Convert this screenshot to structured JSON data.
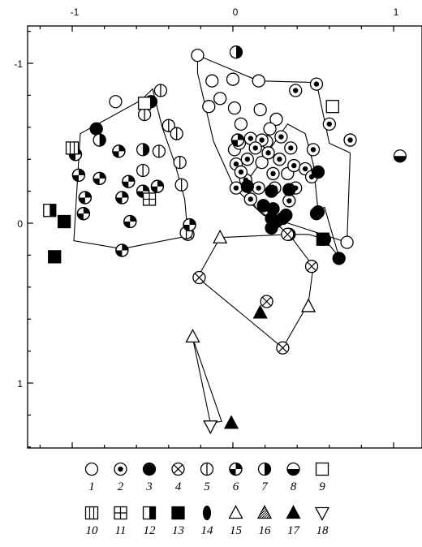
{
  "chart_data": {
    "type": "scatter",
    "title": "",
    "xlabel": "",
    "ylabel": "",
    "xlim": [
      -1.3,
      1.2
    ],
    "ylim": [
      1.42,
      -1.21
    ],
    "y_inverted": true,
    "x_ticks": [
      -1,
      0,
      1
    ],
    "x_tick_labels": [
      "-1",
      "0",
      "1"
    ],
    "y_ticks": [
      -1,
      0,
      1
    ],
    "y_tick_labels": [
      "-1",
      "0",
      "1"
    ],
    "x_axis_position": "top",
    "grid": false,
    "legend": {
      "position": "bottom",
      "entries": [
        {
          "label": "1",
          "symbol": "circle-open"
        },
        {
          "label": "2",
          "symbol": "circle-dot"
        },
        {
          "label": "3",
          "symbol": "circle-filled"
        },
        {
          "label": "4",
          "symbol": "circle-x"
        },
        {
          "label": "5",
          "symbol": "circle-vertical-bar"
        },
        {
          "label": "6",
          "symbol": "circle-quartered"
        },
        {
          "label": "7",
          "symbol": "circle-half-right"
        },
        {
          "label": "8",
          "symbol": "circle-half-bottom"
        },
        {
          "label": "9",
          "symbol": "square-open"
        },
        {
          "label": "10",
          "symbol": "square-bars"
        },
        {
          "label": "11",
          "symbol": "square-grid"
        },
        {
          "label": "12",
          "symbol": "square-half"
        },
        {
          "label": "13",
          "symbol": "square-filled"
        },
        {
          "label": "14",
          "symbol": "ellipse-filled"
        },
        {
          "label": "15",
          "symbol": "triangle-open"
        },
        {
          "label": "16",
          "symbol": "triangle-hatched"
        },
        {
          "label": "17",
          "symbol": "triangle-filled"
        },
        {
          "label": "18",
          "symbol": "triangle-down-open"
        }
      ]
    },
    "groups": [
      {
        "hull": [
          [
            -0.5,
            -0.84
          ],
          [
            -0.44,
            -0.6
          ],
          [
            -0.36,
            -0.37
          ],
          [
            -0.3,
            -0.15
          ],
          [
            -0.28,
            0.08
          ],
          [
            -0.69,
            0.16
          ],
          [
            -0.99,
            0.11
          ],
          [
            -0.95,
            -0.56
          ],
          [
            -0.57,
            -0.77
          ]
        ]
      },
      {
        "hull": [
          [
            -0.22,
            -1.05
          ],
          [
            0.16,
            -0.89
          ],
          [
            0.52,
            -0.88
          ],
          [
            0.6,
            -0.5
          ],
          [
            0.73,
            -0.44
          ],
          [
            0.71,
            0.12
          ],
          [
            0.19,
            -0.05
          ],
          [
            0.01,
            -0.22
          ],
          [
            -0.12,
            -0.51
          ],
          [
            -0.22,
            -0.94
          ]
        ]
      },
      {
        "hull": [
          [
            0.08,
            -0.25
          ],
          [
            0.34,
            -0.62
          ],
          [
            0.45,
            -0.56
          ],
          [
            0.5,
            -0.37
          ],
          [
            0.53,
            -0.08
          ],
          [
            0.57,
            -0.1
          ],
          [
            0.66,
            0.21
          ],
          [
            0.57,
            0.1
          ],
          [
            0.47,
            0.07
          ],
          [
            0.35,
            0.07
          ],
          [
            0.14,
            -0.1
          ]
        ]
      },
      {
        "hull": [
          [
            -0.08,
            0.09
          ],
          [
            0.35,
            0.07
          ],
          [
            0.5,
            0.27
          ],
          [
            0.47,
            0.5
          ],
          [
            0.31,
            0.78
          ],
          [
            0.07,
            0.58
          ],
          [
            -0.22,
            0.34
          ]
        ]
      },
      {
        "hull": [
          [
            -0.25,
            0.72
          ],
          [
            -0.14,
            1.25
          ],
          [
            -0.07,
            1.24
          ]
        ]
      }
    ],
    "points": [
      {
        "s": "1",
        "x": -0.22,
        "y": -1.05
      },
      {
        "s": "1",
        "x": -0.13,
        "y": -0.89
      },
      {
        "s": "1",
        "x": 0.0,
        "y": -0.9
      },
      {
        "s": "1",
        "x": 0.16,
        "y": -0.89
      },
      {
        "s": "1",
        "x": -0.08,
        "y": -0.78
      },
      {
        "s": "1",
        "x": -0.15,
        "y": -0.73
      },
      {
        "s": "1",
        "x": 0.01,
        "y": -0.72
      },
      {
        "s": "1",
        "x": 0.17,
        "y": -0.71
      },
      {
        "s": "1",
        "x": 0.27,
        "y": -0.65
      },
      {
        "s": "1",
        "x": 0.05,
        "y": -0.62
      },
      {
        "s": "1",
        "x": 0.23,
        "y": -0.59
      },
      {
        "s": "1",
        "x": -0.73,
        "y": -0.76
      },
      {
        "s": "1",
        "x": 0.21,
        "y": -0.51
      },
      {
        "s": "1",
        "x": 0.01,
        "y": -0.46
      },
      {
        "s": "1",
        "x": 0.34,
        "y": -0.31
      },
      {
        "s": "1",
        "x": 0.71,
        "y": 0.12
      },
      {
        "s": "1",
        "x": 0.18,
        "y": -0.38
      },
      {
        "s": "2",
        "x": 0.39,
        "y": -0.83
      },
      {
        "s": "2",
        "x": 0.52,
        "y": -0.87
      },
      {
        "s": "2",
        "x": 0.6,
        "y": -0.62
      },
      {
        "s": "2",
        "x": 0.73,
        "y": -0.52
      },
      {
        "s": "2",
        "x": 0.3,
        "y": -0.54
      },
      {
        "s": "2",
        "x": 0.11,
        "y": -0.53
      },
      {
        "s": "2",
        "x": 0.18,
        "y": -0.52
      },
      {
        "s": "2",
        "x": 0.04,
        "y": -0.5
      },
      {
        "s": "2",
        "x": 0.36,
        "y": -0.47
      },
      {
        "s": "2",
        "x": 0.14,
        "y": -0.47
      },
      {
        "s": "2",
        "x": 0.22,
        "y": -0.44
      },
      {
        "s": "2",
        "x": 0.5,
        "y": -0.46
      },
      {
        "s": "2",
        "x": 0.29,
        "y": -0.4
      },
      {
        "s": "2",
        "x": 0.09,
        "y": -0.4
      },
      {
        "s": "2",
        "x": 0.38,
        "y": -0.36
      },
      {
        "s": "2",
        "x": 0.02,
        "y": -0.37
      },
      {
        "s": "2",
        "x": 0.25,
        "y": -0.31
      },
      {
        "s": "2",
        "x": 0.45,
        "y": -0.34
      },
      {
        "s": "2",
        "x": 0.08,
        "y": -0.27
      },
      {
        "s": "2",
        "x": 0.16,
        "y": -0.22
      },
      {
        "s": "2",
        "x": 0.02,
        "y": -0.22
      },
      {
        "s": "2",
        "x": 0.26,
        "y": -0.22
      },
      {
        "s": "2",
        "x": 0.39,
        "y": -0.22
      },
      {
        "s": "2",
        "x": 0.11,
        "y": -0.15
      },
      {
        "s": "2",
        "x": 0.35,
        "y": -0.14
      },
      {
        "s": "2",
        "x": 0.49,
        "y": -0.29
      },
      {
        "s": "2",
        "x": 0.05,
        "y": -0.32
      },
      {
        "s": "3",
        "x": -0.51,
        "y": -0.76
      },
      {
        "s": "3",
        "x": -0.85,
        "y": -0.59
      },
      {
        "s": "3",
        "x": 0.09,
        "y": -0.23
      },
      {
        "s": "3",
        "x": 0.24,
        "y": -0.2
      },
      {
        "s": "3",
        "x": 0.35,
        "y": -0.21
      },
      {
        "s": "3",
        "x": 0.53,
        "y": -0.32
      },
      {
        "s": "3",
        "x": 0.53,
        "y": -0.07
      },
      {
        "s": "3",
        "x": 0.25,
        "y": -0.09
      },
      {
        "s": "3",
        "x": 0.19,
        "y": -0.11
      },
      {
        "s": "3",
        "x": 0.24,
        "y": -0.03
      },
      {
        "s": "3",
        "x": 0.33,
        "y": -0.05
      },
      {
        "s": "3",
        "x": 0.35,
        "y": 0.07
      },
      {
        "s": "3",
        "x": 0.27,
        "y": -0.01
      },
      {
        "s": "3",
        "x": 0.31,
        "y": -0.03
      },
      {
        "s": "3",
        "x": 0.57,
        "y": 0.1
      },
      {
        "s": "3",
        "x": 0.66,
        "y": 0.22
      },
      {
        "s": "3",
        "x": 0.24,
        "y": 0.03
      },
      {
        "s": "3",
        "x": 0.52,
        "y": -0.06
      },
      {
        "s": "4",
        "x": 0.34,
        "y": 0.07
      },
      {
        "s": "4",
        "x": 0.49,
        "y": 0.27
      },
      {
        "s": "4",
        "x": -0.21,
        "y": 0.34
      },
      {
        "s": "4",
        "x": 0.31,
        "y": 0.78
      },
      {
        "s": "4",
        "x": 0.21,
        "y": 0.49
      },
      {
        "s": "4",
        "x": -0.28,
        "y": 0.07
      },
      {
        "s": "5",
        "x": -0.45,
        "y": -0.83
      },
      {
        "s": "5",
        "x": -0.55,
        "y": -0.68
      },
      {
        "s": "5",
        "x": -0.4,
        "y": -0.61
      },
      {
        "s": "5",
        "x": -0.35,
        "y": -0.56
      },
      {
        "s": "5",
        "x": -0.46,
        "y": -0.45
      },
      {
        "s": "5",
        "x": -0.33,
        "y": -0.38
      },
      {
        "s": "5",
        "x": -0.56,
        "y": -0.33
      },
      {
        "s": "5",
        "x": -0.32,
        "y": -0.24
      },
      {
        "s": "5",
        "x": -0.29,
        "y": 0.06
      },
      {
        "s": "6",
        "x": -0.71,
        "y": -0.45
      },
      {
        "s": "6",
        "x": -0.98,
        "y": -0.43
      },
      {
        "s": "6",
        "x": -0.96,
        "y": -0.3
      },
      {
        "s": "6",
        "x": -0.83,
        "y": -0.28
      },
      {
        "s": "6",
        "x": -0.65,
        "y": -0.26
      },
      {
        "s": "6",
        "x": -0.69,
        "y": -0.16
      },
      {
        "s": "6",
        "x": -0.92,
        "y": -0.16
      },
      {
        "s": "6",
        "x": -0.47,
        "y": -0.23
      },
      {
        "s": "6",
        "x": -0.93,
        "y": -0.06
      },
      {
        "s": "6",
        "x": -0.64,
        "y": -0.01
      },
      {
        "s": "6",
        "x": -0.69,
        "y": 0.17
      },
      {
        "s": "6",
        "x": -0.27,
        "y": 0.01
      },
      {
        "s": "6",
        "x": 0.03,
        "y": -0.52
      },
      {
        "s": "6",
        "x": -0.56,
        "y": -0.2
      },
      {
        "s": "7",
        "x": 0.02,
        "y": -1.07
      },
      {
        "s": "7",
        "x": -0.83,
        "y": -0.52
      },
      {
        "s": "7",
        "x": -0.56,
        "y": -0.46
      },
      {
        "s": "8",
        "x": 1.04,
        "y": -0.42
      },
      {
        "s": "9",
        "x": 0.62,
        "y": -0.73
      },
      {
        "s": "9",
        "x": -0.55,
        "y": -0.75
      },
      {
        "s": "10",
        "x": -1.0,
        "y": -0.47
      },
      {
        "s": "11",
        "x": -0.52,
        "y": -0.15
      },
      {
        "s": "12",
        "x": -1.14,
        "y": -0.08
      },
      {
        "s": "13",
        "x": -1.05,
        "y": -0.01
      },
      {
        "s": "13",
        "x": -1.11,
        "y": 0.21
      },
      {
        "s": "13",
        "x": 0.56,
        "y": 0.1
      },
      {
        "s": "15",
        "x": -0.08,
        "y": 0.09
      },
      {
        "s": "15",
        "x": 0.47,
        "y": 0.52
      },
      {
        "s": "15",
        "x": -0.25,
        "y": 0.71
      },
      {
        "s": "17",
        "x": 0.17,
        "y": 0.56
      },
      {
        "s": "17",
        "x": -0.01,
        "y": 1.25
      },
      {
        "s": "18",
        "x": -0.14,
        "y": 1.27
      }
    ]
  }
}
